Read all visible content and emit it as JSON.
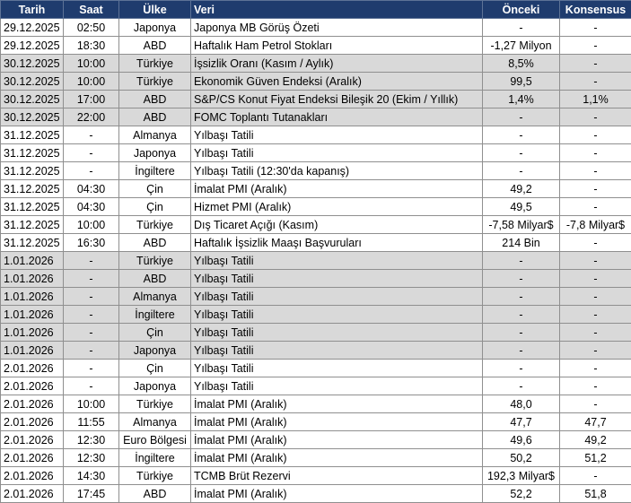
{
  "header": {
    "tarih": "Tarih",
    "saat": "Saat",
    "ulke": "Ülke",
    "veri": "Veri",
    "onceki": "Önceki",
    "konsensus": "Konsensus"
  },
  "rows": [
    {
      "tarih": "29.12.2025",
      "saat": "02:50",
      "ulke": "Japonya",
      "veri": "Japonya MB Görüş Özeti",
      "onceki": "-",
      "konsensus": "-",
      "shaded": false
    },
    {
      "tarih": "29.12.2025",
      "saat": "18:30",
      "ulke": "ABD",
      "veri": "Haftalık Ham Petrol Stokları",
      "onceki": "-1,27 Milyon",
      "konsensus": "-",
      "shaded": false
    },
    {
      "tarih": "30.12.2025",
      "saat": "10:00",
      "ulke": "Türkiye",
      "veri": "İşsizlik Oranı (Kasım / Aylık)",
      "onceki": "8,5%",
      "konsensus": "-",
      "shaded": true
    },
    {
      "tarih": "30.12.2025",
      "saat": "10:00",
      "ulke": "Türkiye",
      "veri": "Ekonomik Güven Endeksi (Aralık)",
      "onceki": "99,5",
      "konsensus": "-",
      "shaded": true
    },
    {
      "tarih": "30.12.2025",
      "saat": "17:00",
      "ulke": "ABD",
      "veri": "S&P/CS Konut Fiyat Endeksi Bileşik 20 (Ekim / Yıllık)",
      "onceki": "1,4%",
      "konsensus": "1,1%",
      "shaded": true
    },
    {
      "tarih": "30.12.2025",
      "saat": "22:00",
      "ulke": "ABD",
      "veri": "FOMC Toplantı Tutanakları",
      "onceki": "-",
      "konsensus": "-",
      "shaded": true
    },
    {
      "tarih": "31.12.2025",
      "saat": "-",
      "ulke": "Almanya",
      "veri": "Yılbaşı Tatili",
      "onceki": "-",
      "konsensus": "-",
      "shaded": false
    },
    {
      "tarih": "31.12.2025",
      "saat": "-",
      "ulke": "Japonya",
      "veri": "Yılbaşı Tatili",
      "onceki": "-",
      "konsensus": "-",
      "shaded": false
    },
    {
      "tarih": "31.12.2025",
      "saat": "-",
      "ulke": "İngiltere",
      "veri": "Yılbaşı Tatili (12:30'da kapanış)",
      "onceki": "-",
      "konsensus": "-",
      "shaded": false
    },
    {
      "tarih": "31.12.2025",
      "saat": "04:30",
      "ulke": "Çin",
      "veri": "İmalat PMI (Aralık)",
      "onceki": "49,2",
      "konsensus": "-",
      "shaded": false
    },
    {
      "tarih": "31.12.2025",
      "saat": "04:30",
      "ulke": "Çin",
      "veri": "Hizmet PMI (Aralık)",
      "onceki": "49,5",
      "konsensus": "-",
      "shaded": false
    },
    {
      "tarih": "31.12.2025",
      "saat": "10:00",
      "ulke": "Türkiye",
      "veri": "Dış Ticaret Açığı (Kasım)",
      "onceki": "-7,58 Milyar$",
      "konsensus": "-7,8 Milyar$",
      "shaded": false
    },
    {
      "tarih": "31.12.2025",
      "saat": "16:30",
      "ulke": "ABD",
      "veri": "Haftalık İşsizlik Maaşı Başvuruları",
      "onceki": "214 Bin",
      "konsensus": "-",
      "shaded": false
    },
    {
      "tarih": "1.01.2026",
      "saat": "-",
      "ulke": "Türkiye",
      "veri": "Yılbaşı Tatili",
      "onceki": "-",
      "konsensus": "-",
      "shaded": true
    },
    {
      "tarih": "1.01.2026",
      "saat": "-",
      "ulke": "ABD",
      "veri": "Yılbaşı Tatili",
      "onceki": "-",
      "konsensus": "-",
      "shaded": true
    },
    {
      "tarih": "1.01.2026",
      "saat": "-",
      "ulke": "Almanya",
      "veri": "Yılbaşı Tatili",
      "onceki": "-",
      "konsensus": "-",
      "shaded": true
    },
    {
      "tarih": "1.01.2026",
      "saat": "-",
      "ulke": "İngiltere",
      "veri": "Yılbaşı Tatili",
      "onceki": "-",
      "konsensus": "-",
      "shaded": true
    },
    {
      "tarih": "1.01.2026",
      "saat": "-",
      "ulke": "Çin",
      "veri": "Yılbaşı Tatili",
      "onceki": "-",
      "konsensus": "-",
      "shaded": true
    },
    {
      "tarih": "1.01.2026",
      "saat": "-",
      "ulke": "Japonya",
      "veri": "Yılbaşı Tatili",
      "onceki": "-",
      "konsensus": "-",
      "shaded": true
    },
    {
      "tarih": "2.01.2026",
      "saat": "-",
      "ulke": "Çin",
      "veri": "Yılbaşı Tatili",
      "onceki": "-",
      "konsensus": "-",
      "shaded": false
    },
    {
      "tarih": "2.01.2026",
      "saat": "-",
      "ulke": "Japonya",
      "veri": "Yılbaşı Tatili",
      "onceki": "-",
      "konsensus": "-",
      "shaded": false
    },
    {
      "tarih": "2.01.2026",
      "saat": "10:00",
      "ulke": "Türkiye",
      "veri": "İmalat PMI (Aralık)",
      "onceki": "48,0",
      "konsensus": "-",
      "shaded": false
    },
    {
      "tarih": "2.01.2026",
      "saat": "11:55",
      "ulke": "Almanya",
      "veri": "İmalat PMI (Aralık)",
      "onceki": "47,7",
      "konsensus": "47,7",
      "shaded": false
    },
    {
      "tarih": "2.01.2026",
      "saat": "12:30",
      "ulke": "Euro Bölgesi",
      "veri": "İmalat PMI (Aralık)",
      "onceki": "49,6",
      "konsensus": "49,2",
      "shaded": false
    },
    {
      "tarih": "2.01.2026",
      "saat": "12:30",
      "ulke": "İngiltere",
      "veri": "İmalat PMI (Aralık)",
      "onceki": "50,2",
      "konsensus": "51,2",
      "shaded": false
    },
    {
      "tarih": "2.01.2026",
      "saat": "14:30",
      "ulke": "Türkiye",
      "veri": "TCMB Brüt Rezervi",
      "onceki": "192,3 Milyar$",
      "konsensus": "-",
      "shaded": false
    },
    {
      "tarih": "2.01.2026",
      "saat": "17:45",
      "ulke": "ABD",
      "veri": "İmalat PMI (Aralık)",
      "onceki": "52,2",
      "konsensus": "51,8",
      "shaded": false
    }
  ]
}
